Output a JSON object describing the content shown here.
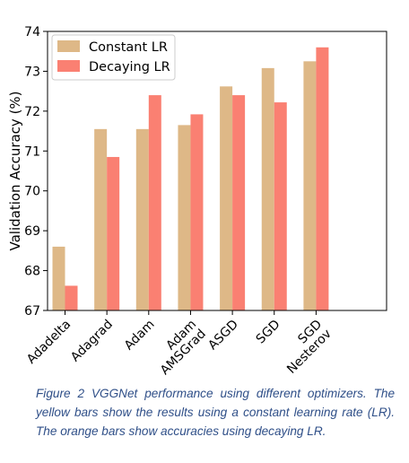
{
  "chart_data": {
    "type": "bar",
    "categories": [
      [
        "Adadelta"
      ],
      [
        "Adagrad"
      ],
      [
        "Adam"
      ],
      [
        "Adam",
        "AMSGrad"
      ],
      [
        "ASGD"
      ],
      [
        "SGD"
      ],
      [
        "SGD",
        "Nesterov"
      ]
    ],
    "series": [
      {
        "name": "Constant LR",
        "color": "#deb887",
        "values": [
          68.6,
          71.55,
          71.55,
          71.65,
          72.62,
          73.08,
          73.25
        ]
      },
      {
        "name": "Decaying LR",
        "color": "#fa8072",
        "values": [
          67.62,
          70.85,
          72.4,
          71.92,
          72.4,
          72.22,
          73.6
        ]
      }
    ],
    "xlabel": "",
    "ylabel": "Validation Accuracy (%)",
    "ylim": [
      67,
      74
    ],
    "yticks": [
      67,
      68,
      69,
      70,
      71,
      72,
      73,
      74
    ],
    "grid": false,
    "legend": "top-left"
  },
  "caption": "Figure 2 VGGNet performance using different optimizers. The yellow bars show the results using a constant learning rate (LR). The orange bars show accuracies using decaying LR."
}
